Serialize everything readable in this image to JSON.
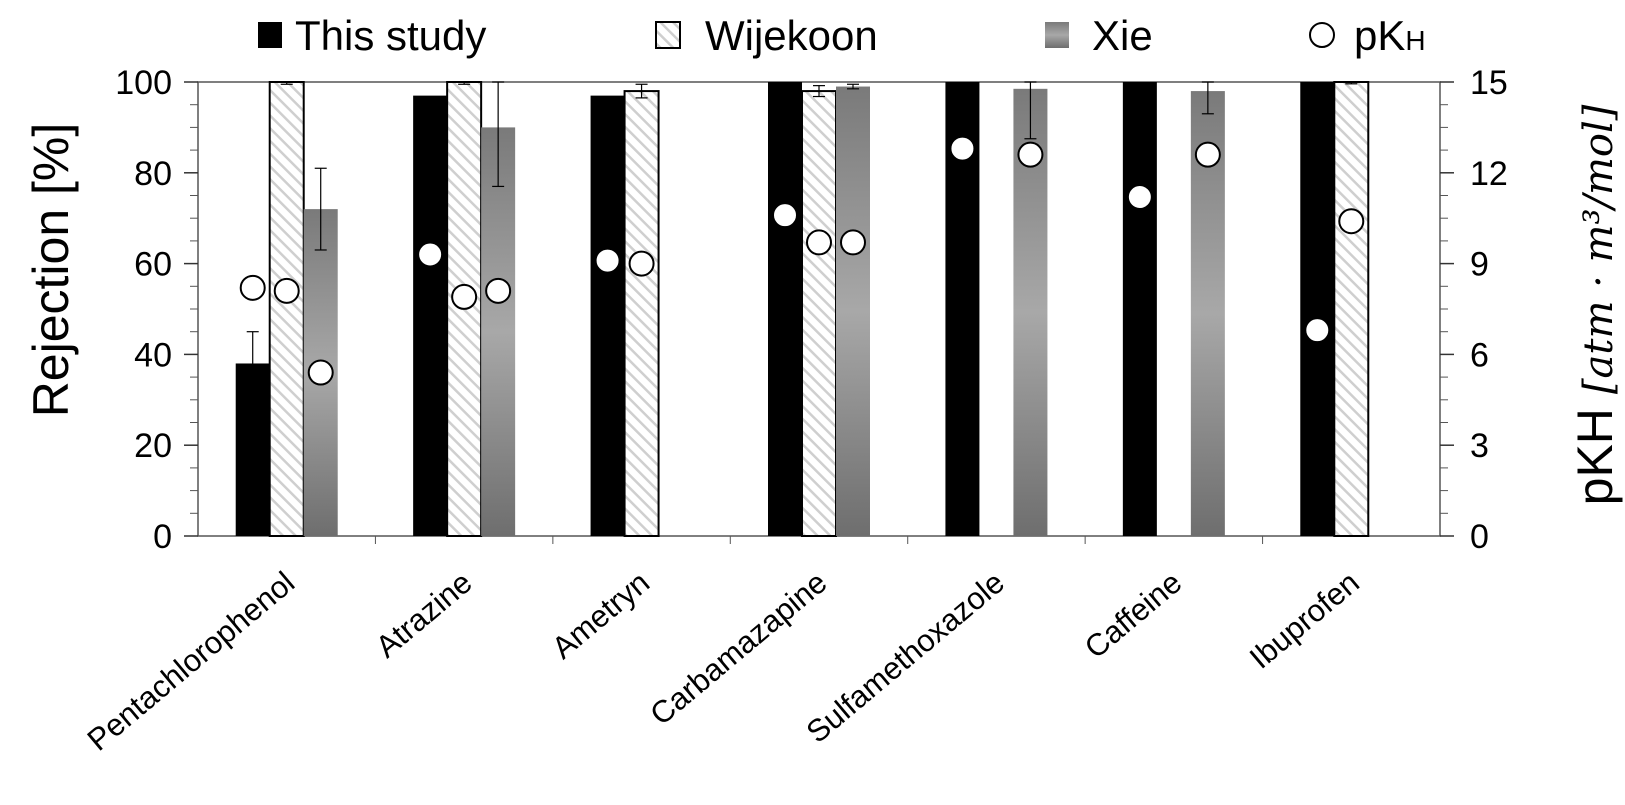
{
  "chart_data": {
    "type": "bar",
    "categories": [
      "Pentachlorophenol",
      "Atrazine",
      "Ametryn",
      "Carbamazapine",
      "Sulfamethoxazole",
      "Caffeine",
      "Ibuprofen"
    ],
    "series": [
      {
        "name": "This study",
        "color": "#000000",
        "values": [
          38,
          97,
          97,
          100,
          100,
          100,
          100
        ],
        "errors": [
          7,
          null,
          null,
          null,
          null,
          null,
          null
        ],
        "pkh": [
          8.2,
          9.3,
          9.1,
          10.6,
          12.8,
          11.2,
          6.8
        ]
      },
      {
        "name": "Wijekoon",
        "color": "#ffffff",
        "values": [
          100,
          100,
          98,
          98,
          null,
          null,
          100
        ],
        "errors": [
          0.5,
          0.5,
          1.5,
          1.2,
          null,
          null,
          0.4
        ],
        "pkh": [
          8.1,
          7.9,
          9.0,
          9.7,
          null,
          null,
          10.4
        ]
      },
      {
        "name": "Xie",
        "color": "#888888",
        "values": [
          72,
          90,
          null,
          99,
          98.5,
          98,
          null
        ],
        "errors": [
          9,
          13,
          null,
          0.5,
          11,
          5,
          null
        ],
        "pkh": [
          5.4,
          8.1,
          null,
          9.7,
          12.6,
          12.6,
          null
        ]
      }
    ],
    "legend": [
      "This study",
      "Wijekoon",
      "Xie",
      "pK"
    ],
    "legend_sub": "H",
    "ylabel": "Rejection [%]",
    "ylim": [
      0,
      100
    ],
    "yticks": [
      "0",
      "20",
      "40",
      "60",
      "80",
      "100"
    ],
    "y2label_main": "pK",
    "y2label_sub": "H",
    "y2label_unit": "[atm · m³/mol]",
    "y2lim": [
      0,
      15
    ],
    "y2ticks": [
      "0",
      "3",
      "6",
      "9",
      "12",
      "15"
    ],
    "legend_position": "top"
  }
}
